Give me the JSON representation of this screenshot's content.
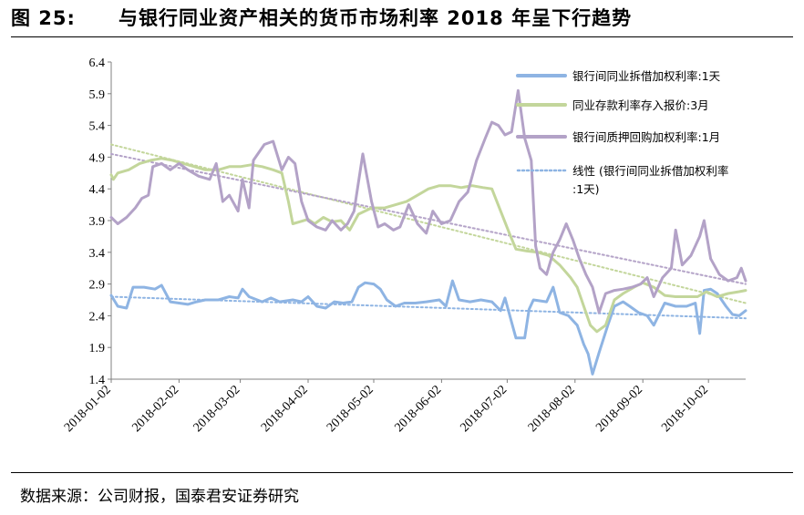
{
  "title": {
    "number": "图 25:",
    "text": "与银行同业资产相关的货币市场利率 2018 年呈下行趋势"
  },
  "source": "数据来源：公司财报，国泰君安证券研究",
  "chart_data": {
    "type": "line",
    "ylim": [
      1.4,
      6.4
    ],
    "y_ticks": [
      "6.4",
      "5.9",
      "5.4",
      "4.9",
      "4.4",
      "3.9",
      "3.4",
      "2.9",
      "2.4",
      "1.9",
      "1.4"
    ],
    "x_tick_labels": [
      "2018-01-02",
      "2018-02-02",
      "2018-03-02",
      "2018-04-02",
      "2018-05-02",
      "2018-06-02",
      "2018-07-02",
      "2018-08-02",
      "2018-09-02",
      "2018-10-02"
    ],
    "x_ticks": [
      "2018-01-02",
      "2018-02-02",
      "2018-03-02",
      "2018-04-02",
      "2018-05-02",
      "2018-06-02",
      "2018-07-02",
      "2018-08-02",
      "2018-09-02",
      "2018-10-02"
    ],
    "grid": false,
    "legend_position": "top-right",
    "series": [
      {
        "name": "银行间同业拆借加权利率:1天",
        "color": "#8eb4e3",
        "style": "solid",
        "points": [
          [
            "2018-01-02",
            2.72
          ],
          [
            "2018-01-05",
            2.55
          ],
          [
            "2018-01-09",
            2.52
          ],
          [
            "2018-01-12",
            2.85
          ],
          [
            "2018-01-17",
            2.85
          ],
          [
            "2018-01-22",
            2.82
          ],
          [
            "2018-01-25",
            2.88
          ],
          [
            "2018-01-29",
            2.62
          ],
          [
            "2018-02-02",
            2.6
          ],
          [
            "2018-02-06",
            2.58
          ],
          [
            "2018-02-10",
            2.62
          ],
          [
            "2018-02-14",
            2.65
          ],
          [
            "2018-02-20",
            2.65
          ],
          [
            "2018-02-25",
            2.7
          ],
          [
            "2018-03-01",
            2.68
          ],
          [
            "2018-03-03",
            2.82
          ],
          [
            "2018-03-06",
            2.7
          ],
          [
            "2018-03-12",
            2.62
          ],
          [
            "2018-03-16",
            2.68
          ],
          [
            "2018-03-20",
            2.62
          ],
          [
            "2018-03-26",
            2.65
          ],
          [
            "2018-03-30",
            2.62
          ],
          [
            "2018-04-02",
            2.7
          ],
          [
            "2018-04-06",
            2.55
          ],
          [
            "2018-04-10",
            2.52
          ],
          [
            "2018-04-14",
            2.62
          ],
          [
            "2018-04-18",
            2.6
          ],
          [
            "2018-04-22",
            2.62
          ],
          [
            "2018-04-25",
            2.85
          ],
          [
            "2018-04-28",
            2.92
          ],
          [
            "2018-05-02",
            2.9
          ],
          [
            "2018-05-05",
            2.82
          ],
          [
            "2018-05-08",
            2.65
          ],
          [
            "2018-05-12",
            2.55
          ],
          [
            "2018-05-16",
            2.6
          ],
          [
            "2018-05-21",
            2.6
          ],
          [
            "2018-05-26",
            2.62
          ],
          [
            "2018-06-01",
            2.65
          ],
          [
            "2018-06-04",
            2.55
          ],
          [
            "2018-06-07",
            2.95
          ],
          [
            "2018-06-10",
            2.65
          ],
          [
            "2018-06-15",
            2.62
          ],
          [
            "2018-06-20",
            2.65
          ],
          [
            "2018-06-25",
            2.62
          ],
          [
            "2018-06-29",
            2.48
          ],
          [
            "2018-07-01",
            2.68
          ],
          [
            "2018-07-04",
            2.3
          ],
          [
            "2018-07-06",
            2.05
          ],
          [
            "2018-07-10",
            2.05
          ],
          [
            "2018-07-12",
            2.5
          ],
          [
            "2018-07-14",
            2.65
          ],
          [
            "2018-07-20",
            2.62
          ],
          [
            "2018-07-23",
            2.85
          ],
          [
            "2018-07-26",
            2.45
          ],
          [
            "2018-07-30",
            2.4
          ],
          [
            "2018-08-03",
            2.25
          ],
          [
            "2018-08-06",
            1.95
          ],
          [
            "2018-08-08",
            1.8
          ],
          [
            "2018-08-10",
            1.48
          ],
          [
            "2018-08-13",
            1.82
          ],
          [
            "2018-08-17",
            2.25
          ],
          [
            "2018-08-20",
            2.55
          ],
          [
            "2018-08-24",
            2.62
          ],
          [
            "2018-08-27",
            2.55
          ],
          [
            "2018-08-31",
            2.45
          ],
          [
            "2018-09-04",
            2.4
          ],
          [
            "2018-09-07",
            2.25
          ],
          [
            "2018-09-12",
            2.6
          ],
          [
            "2018-09-17",
            2.55
          ],
          [
            "2018-09-22",
            2.55
          ],
          [
            "2018-09-26",
            2.6
          ],
          [
            "2018-09-28",
            2.12
          ],
          [
            "2018-09-30",
            2.8
          ],
          [
            "2018-10-03",
            2.82
          ],
          [
            "2018-10-06",
            2.75
          ],
          [
            "2018-10-10",
            2.55
          ],
          [
            "2018-10-13",
            2.42
          ],
          [
            "2018-10-16",
            2.4
          ],
          [
            "2018-10-19",
            2.48
          ]
        ]
      },
      {
        "name": "同业存款利率存入报价:3月",
        "color": "#c3d69b",
        "style": "solid",
        "points": [
          [
            "2018-01-02",
            4.62
          ],
          [
            "2018-01-03",
            4.55
          ],
          [
            "2018-01-05",
            4.65
          ],
          [
            "2018-01-10",
            4.7
          ],
          [
            "2018-01-15",
            4.8
          ],
          [
            "2018-01-20",
            4.85
          ],
          [
            "2018-01-25",
            4.88
          ],
          [
            "2018-01-30",
            4.85
          ],
          [
            "2018-02-04",
            4.8
          ],
          [
            "2018-02-09",
            4.75
          ],
          [
            "2018-02-14",
            4.7
          ],
          [
            "2018-02-20",
            4.7
          ],
          [
            "2018-02-25",
            4.75
          ],
          [
            "2018-03-02",
            4.75
          ],
          [
            "2018-03-07",
            4.78
          ],
          [
            "2018-03-12",
            4.75
          ],
          [
            "2018-03-17",
            4.7
          ],
          [
            "2018-03-21",
            4.65
          ],
          [
            "2018-03-24",
            4.2
          ],
          [
            "2018-03-26",
            3.85
          ],
          [
            "2018-03-29",
            3.88
          ],
          [
            "2018-04-02",
            3.92
          ],
          [
            "2018-04-05",
            3.85
          ],
          [
            "2018-04-09",
            3.95
          ],
          [
            "2018-04-13",
            3.88
          ],
          [
            "2018-04-17",
            3.9
          ],
          [
            "2018-04-21",
            3.75
          ],
          [
            "2018-04-25",
            4.0
          ],
          [
            "2018-05-01",
            4.1
          ],
          [
            "2018-05-07",
            4.1
          ],
          [
            "2018-05-12",
            4.15
          ],
          [
            "2018-05-17",
            4.2
          ],
          [
            "2018-05-22",
            4.3
          ],
          [
            "2018-05-27",
            4.4
          ],
          [
            "2018-06-01",
            4.45
          ],
          [
            "2018-06-06",
            4.45
          ],
          [
            "2018-06-11",
            4.42
          ],
          [
            "2018-06-16",
            4.45
          ],
          [
            "2018-06-21",
            4.42
          ],
          [
            "2018-06-25",
            4.4
          ],
          [
            "2018-06-29",
            4.05
          ],
          [
            "2018-07-03",
            3.7
          ],
          [
            "2018-07-06",
            3.45
          ],
          [
            "2018-07-11",
            3.42
          ],
          [
            "2018-07-16",
            3.4
          ],
          [
            "2018-07-21",
            3.35
          ],
          [
            "2018-07-26",
            3.2
          ],
          [
            "2018-07-31",
            3.0
          ],
          [
            "2018-08-03",
            2.85
          ],
          [
            "2018-08-06",
            2.55
          ],
          [
            "2018-08-09",
            2.25
          ],
          [
            "2018-08-12",
            2.15
          ],
          [
            "2018-08-16",
            2.25
          ],
          [
            "2018-08-20",
            2.65
          ],
          [
            "2018-08-24",
            2.75
          ],
          [
            "2018-08-29",
            2.85
          ],
          [
            "2018-09-02",
            2.92
          ],
          [
            "2018-09-07",
            2.85
          ],
          [
            "2018-09-12",
            2.72
          ],
          [
            "2018-09-17",
            2.7
          ],
          [
            "2018-09-22",
            2.7
          ],
          [
            "2018-09-27",
            2.7
          ],
          [
            "2018-10-01",
            2.78
          ],
          [
            "2018-10-06",
            2.7
          ],
          [
            "2018-10-11",
            2.75
          ],
          [
            "2018-10-16",
            2.78
          ],
          [
            "2018-10-19",
            2.8
          ]
        ]
      },
      {
        "name": "银行间质押回购加权利率:1月",
        "color": "#b3a2c7",
        "style": "solid",
        "points": [
          [
            "2018-01-02",
            3.95
          ],
          [
            "2018-01-05",
            3.85
          ],
          [
            "2018-01-09",
            3.95
          ],
          [
            "2018-01-13",
            4.1
          ],
          [
            "2018-01-16",
            4.25
          ],
          [
            "2018-01-19",
            4.3
          ],
          [
            "2018-01-21",
            4.75
          ],
          [
            "2018-01-25",
            4.8
          ],
          [
            "2018-01-29",
            4.7
          ],
          [
            "2018-02-02",
            4.8
          ],
          [
            "2018-02-06",
            4.7
          ],
          [
            "2018-02-11",
            4.6
          ],
          [
            "2018-02-16",
            4.55
          ],
          [
            "2018-02-19",
            4.8
          ],
          [
            "2018-02-22",
            4.2
          ],
          [
            "2018-02-25",
            4.3
          ],
          [
            "2018-03-01",
            4.05
          ],
          [
            "2018-03-03",
            4.55
          ],
          [
            "2018-03-06",
            4.1
          ],
          [
            "2018-03-08",
            4.85
          ],
          [
            "2018-03-13",
            5.1
          ],
          [
            "2018-03-17",
            5.15
          ],
          [
            "2018-03-21",
            4.7
          ],
          [
            "2018-03-24",
            4.9
          ],
          [
            "2018-03-27",
            4.8
          ],
          [
            "2018-03-30",
            4.2
          ],
          [
            "2018-04-02",
            3.9
          ],
          [
            "2018-04-06",
            3.8
          ],
          [
            "2018-04-10",
            3.75
          ],
          [
            "2018-04-13",
            3.9
          ],
          [
            "2018-04-17",
            3.75
          ],
          [
            "2018-04-20",
            3.85
          ],
          [
            "2018-04-23",
            4.05
          ],
          [
            "2018-04-27",
            4.95
          ],
          [
            "2018-05-01",
            4.2
          ],
          [
            "2018-05-04",
            3.8
          ],
          [
            "2018-05-07",
            3.85
          ],
          [
            "2018-05-11",
            3.75
          ],
          [
            "2018-05-14",
            3.8
          ],
          [
            "2018-05-18",
            4.15
          ],
          [
            "2018-05-22",
            3.85
          ],
          [
            "2018-05-26",
            3.7
          ],
          [
            "2018-05-29",
            4.05
          ],
          [
            "2018-06-02",
            3.85
          ],
          [
            "2018-06-06",
            3.9
          ],
          [
            "2018-06-10",
            4.2
          ],
          [
            "2018-06-14",
            4.35
          ],
          [
            "2018-06-18",
            4.85
          ],
          [
            "2018-06-22",
            5.2
          ],
          [
            "2018-06-25",
            5.45
          ],
          [
            "2018-06-28",
            5.4
          ],
          [
            "2018-07-01",
            5.25
          ],
          [
            "2018-07-04",
            5.3
          ],
          [
            "2018-07-07",
            5.95
          ],
          [
            "2018-07-10",
            5.2
          ],
          [
            "2018-07-13",
            4.85
          ],
          [
            "2018-07-15",
            3.5
          ],
          [
            "2018-07-17",
            3.15
          ],
          [
            "2018-07-20",
            3.05
          ],
          [
            "2018-07-23",
            3.4
          ],
          [
            "2018-07-26",
            3.6
          ],
          [
            "2018-07-29",
            3.85
          ],
          [
            "2018-08-01",
            3.6
          ],
          [
            "2018-08-04",
            3.3
          ],
          [
            "2018-08-07",
            3.05
          ],
          [
            "2018-08-10",
            2.85
          ],
          [
            "2018-08-13",
            2.45
          ],
          [
            "2018-08-16",
            2.75
          ],
          [
            "2018-08-20",
            2.8
          ],
          [
            "2018-08-24",
            2.82
          ],
          [
            "2018-08-28",
            2.85
          ],
          [
            "2018-09-01",
            2.9
          ],
          [
            "2018-09-04",
            3.0
          ],
          [
            "2018-09-07",
            2.7
          ],
          [
            "2018-09-11",
            3.0
          ],
          [
            "2018-09-15",
            3.15
          ],
          [
            "2018-09-17",
            3.75
          ],
          [
            "2018-09-20",
            3.2
          ],
          [
            "2018-09-24",
            3.35
          ],
          [
            "2018-09-28",
            3.65
          ],
          [
            "2018-09-30",
            3.9
          ],
          [
            "2018-10-03",
            3.3
          ],
          [
            "2018-10-07",
            3.05
          ],
          [
            "2018-10-11",
            2.95
          ],
          [
            "2018-10-15",
            3.0
          ],
          [
            "2018-10-17",
            3.15
          ],
          [
            "2018-10-19",
            2.95
          ]
        ]
      },
      {
        "name": "线性 (银行间同业拆借加权利率:1天)",
        "color": "#8eb4e3",
        "style": "dotted",
        "points": [
          [
            "2018-01-02",
            2.7
          ],
          [
            "2018-10-19",
            2.36
          ]
        ]
      },
      {
        "name": "",
        "color": "#c3d69b",
        "style": "dotted",
        "points": [
          [
            "2018-01-02",
            5.1
          ],
          [
            "2018-10-19",
            2.6
          ]
        ]
      },
      {
        "name": "",
        "color": "#b3a2c7",
        "style": "dotted",
        "points": [
          [
            "2018-01-02",
            4.95
          ],
          [
            "2018-10-19",
            2.9
          ]
        ]
      }
    ]
  },
  "legend": {
    "items": [
      "银行间同业拆借加权利率:1天",
      "同业存款利率存入报价:3月",
      "银行间质押回购加权利率:1月",
      "线性 (银行间同业拆借加权利率:1天)"
    ]
  }
}
